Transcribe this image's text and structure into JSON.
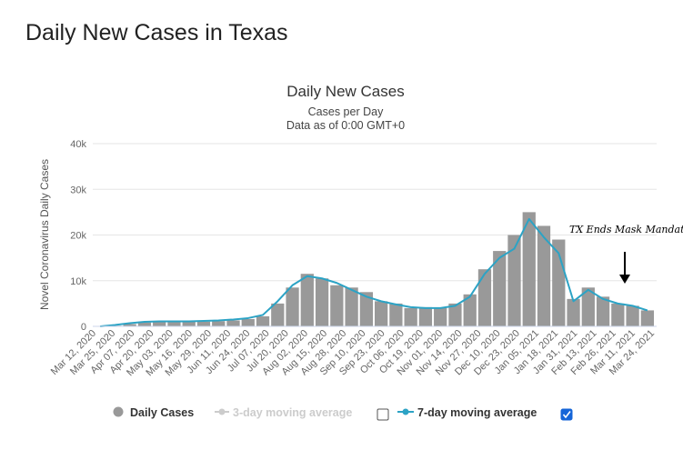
{
  "page_title": "Daily New Cases in Texas",
  "chart_data": {
    "type": "bar",
    "title": "Daily New Cases",
    "subtitle": "Cases per Day",
    "subtitle2": "Data as of 0:00 GMT+0",
    "ylabel": "Novel Coronavirus Daily Cases",
    "xlabel": "",
    "ylim": [
      0,
      40000
    ],
    "y_ticks": [
      0,
      10000,
      20000,
      30000,
      40000
    ],
    "y_tick_labels": [
      "0",
      "10k",
      "20k",
      "30k",
      "40k"
    ],
    "x_tick_labels": [
      "Mar 12, 2020",
      "Mar 25, 2020",
      "Apr 07, 2020",
      "Apr 20, 2020",
      "May 03, 2020",
      "May 16, 2020",
      "May 29, 2020",
      "Jun 11, 2020",
      "Jun 24, 2020",
      "Jul 07, 2020",
      "Jul 20, 2020",
      "Aug 02, 2020",
      "Aug 15, 2020",
      "Aug 28, 2020",
      "Sep 10, 2020",
      "Sep 23, 2020",
      "Oct 06, 2020",
      "Oct 19, 2020",
      "Nov 01, 2020",
      "Nov 14, 2020",
      "Nov 27, 2020",
      "Dec 10, 2020",
      "Dec 23, 2020",
      "Jan 05, 2021",
      "Jan 18, 2021",
      "Jan 31, 2021",
      "Feb 13, 2021",
      "Feb 26, 2021",
      "Mar 11, 2021",
      "Mar 24, 2021"
    ],
    "grid": true,
    "legend_position": "bottom-center",
    "series": [
      {
        "name": "Daily Cases",
        "type": "bar",
        "color": "#999999",
        "values": [
          20,
          150,
          500,
          850,
          1000,
          1050,
          1000,
          1050,
          1150,
          1300,
          1600,
          2200,
          5000,
          8500,
          11500,
          10500,
          9000,
          8500,
          7500,
          5500,
          5000,
          4000,
          4200,
          4000,
          5000,
          7000,
          12500,
          16500,
          20000,
          25000,
          22000,
          19000,
          6000,
          8500,
          6500,
          5000,
          4500,
          3500
        ]
      },
      {
        "name": "3-day moving average",
        "type": "line",
        "color": "#cccccc",
        "visible": false
      },
      {
        "name": "7-day moving average",
        "type": "line",
        "color": "#2ca3c5",
        "visible": true,
        "values": [
          0,
          300,
          700,
          1000,
          1100,
          1100,
          1100,
          1200,
          1300,
          1500,
          1800,
          2500,
          5500,
          9000,
          11000,
          10500,
          9500,
          8000,
          6500,
          5500,
          4800,
          4200,
          4000,
          4000,
          4500,
          6500,
          11500,
          15000,
          17000,
          23500,
          19500,
          16000,
          5500,
          8000,
          6000,
          5000,
          4500,
          3500
        ]
      }
    ],
    "annotations": [
      {
        "text": "TX Ends Mask Mandate",
        "date": "Mar 10, 2021",
        "value": 8500
      }
    ]
  },
  "legend": [
    {
      "label": "Daily Cases",
      "color": "#999999",
      "active": true
    },
    {
      "label": "3-day moving average",
      "color": "#cccccc",
      "active": false,
      "checked": false
    },
    {
      "label": "7-day moving average",
      "color": "#2ca3c5",
      "active": true,
      "checked": true
    }
  ]
}
